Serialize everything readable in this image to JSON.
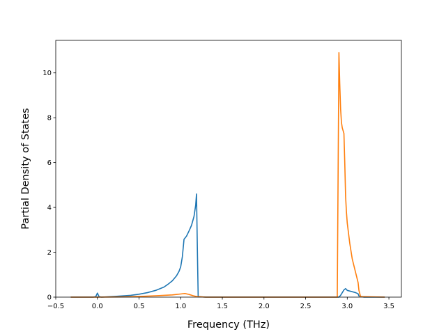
{
  "chart_data": {
    "type": "line",
    "title": "",
    "xlabel": "Frequency (THz)",
    "ylabel": "Partial Density of States",
    "xlim": [
      -0.5,
      3.65
    ],
    "ylim": [
      0,
      11.45
    ],
    "xticks": [
      -0.5,
      0.0,
      0.5,
      1.0,
      1.5,
      2.0,
      2.5,
      3.0,
      3.5
    ],
    "xtick_labels": [
      "−0.5",
      "0.0",
      "0.5",
      "1.0",
      "1.5",
      "2.0",
      "2.5",
      "3.0",
      "3.5"
    ],
    "yticks": [
      0,
      2,
      4,
      6,
      8,
      10
    ],
    "ytick_labels": [
      "0",
      "2",
      "4",
      "6",
      "8",
      "10"
    ],
    "grid": false,
    "legend": "none",
    "series": [
      {
        "color": "#1f77b4",
        "x": [
          -0.32,
          -0.05,
          -0.02,
          0.0,
          0.02,
          0.05,
          0.2,
          0.4,
          0.5,
          0.6,
          0.7,
          0.8,
          0.85,
          0.9,
          0.95,
          0.98,
          1.0,
          1.02,
          1.04,
          1.07,
          1.1,
          1.13,
          1.16,
          1.18,
          1.19,
          1.2,
          1.21,
          1.3,
          2.0,
          2.9,
          2.92,
          2.94,
          2.96,
          2.98,
          3.0,
          3.05,
          3.1,
          3.13,
          3.14,
          3.2,
          3.45
        ],
        "y": [
          0,
          0,
          0.02,
          0.18,
          0.02,
          0,
          0.03,
          0.08,
          0.13,
          0.2,
          0.3,
          0.45,
          0.58,
          0.73,
          0.95,
          1.15,
          1.35,
          1.8,
          2.58,
          2.72,
          2.95,
          3.2,
          3.6,
          4.1,
          4.6,
          2.2,
          0.02,
          0,
          0,
          0,
          0.08,
          0.2,
          0.32,
          0.38,
          0.3,
          0.25,
          0.2,
          0.15,
          0.05,
          0,
          0
        ]
      },
      {
        "color": "#ff7f0e",
        "x": [
          -0.32,
          0.0,
          0.3,
          0.5,
          0.7,
          0.9,
          1.0,
          1.05,
          1.1,
          1.15,
          1.2,
          1.3,
          2.0,
          2.88,
          2.9,
          2.91,
          2.92,
          2.93,
          2.94,
          2.96,
          2.97,
          2.98,
          2.99,
          3.0,
          3.03,
          3.06,
          3.1,
          3.13,
          3.14,
          3.16,
          3.45
        ],
        "y": [
          0,
          0,
          0.01,
          0.03,
          0.06,
          0.1,
          0.14,
          0.16,
          0.12,
          0.06,
          0.02,
          0,
          0,
          0,
          10.9,
          9.5,
          8.4,
          7.8,
          7.55,
          7.3,
          6.0,
          4.5,
          3.8,
          3.3,
          2.4,
          1.7,
          1.1,
          0.65,
          0.3,
          0.02,
          0
        ]
      }
    ]
  }
}
